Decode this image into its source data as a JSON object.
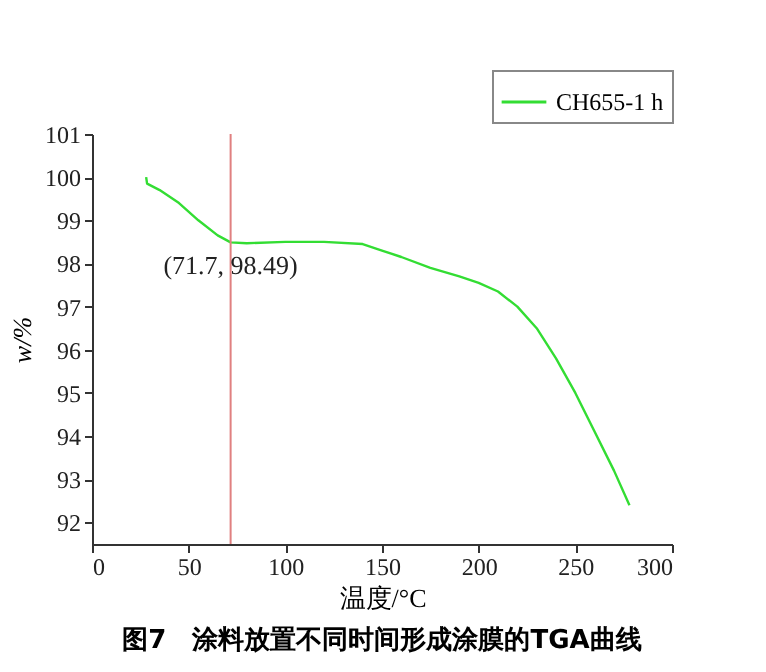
{
  "chart_data": {
    "type": "line",
    "title": "图7　涂料放置不同时间形成涂膜的TGA曲线",
    "xlabel": "温度/°C",
    "ylabel": "w/%",
    "x": [
      28,
      28.5,
      35,
      45,
      55,
      65,
      71.7,
      80,
      100,
      120,
      140,
      150,
      160,
      175,
      190,
      200,
      210,
      220,
      230,
      240,
      250,
      260,
      270,
      278
    ],
    "series": [
      {
        "name": "CH655-1 h",
        "color": "#33dd33",
        "values": [
          100.0,
          99.85,
          99.7,
          99.4,
          99.0,
          98.65,
          98.49,
          98.47,
          98.5,
          98.5,
          98.45,
          98.3,
          98.15,
          97.9,
          97.7,
          97.55,
          97.35,
          97.0,
          96.5,
          95.8,
          95.0,
          94.1,
          93.2,
          92.4
        ]
      }
    ],
    "xlim": [
      0,
      300
    ],
    "xticks": [
      0,
      50,
      100,
      150,
      200,
      250,
      300
    ],
    "ylim": [
      91.5,
      101
    ],
    "yticks": [
      92,
      93,
      94,
      95,
      96,
      97,
      98,
      99,
      100,
      101
    ],
    "ref_lines": [
      {
        "axis": "x",
        "value": 71.7,
        "color": "#e08080"
      }
    ],
    "annotations": [
      {
        "text": "(71.7, 98.49)",
        "x": 71.7,
        "y": 98.49
      }
    ],
    "grid": false,
    "legend": "top right",
    "marker": "none",
    "line_style": "solid"
  }
}
